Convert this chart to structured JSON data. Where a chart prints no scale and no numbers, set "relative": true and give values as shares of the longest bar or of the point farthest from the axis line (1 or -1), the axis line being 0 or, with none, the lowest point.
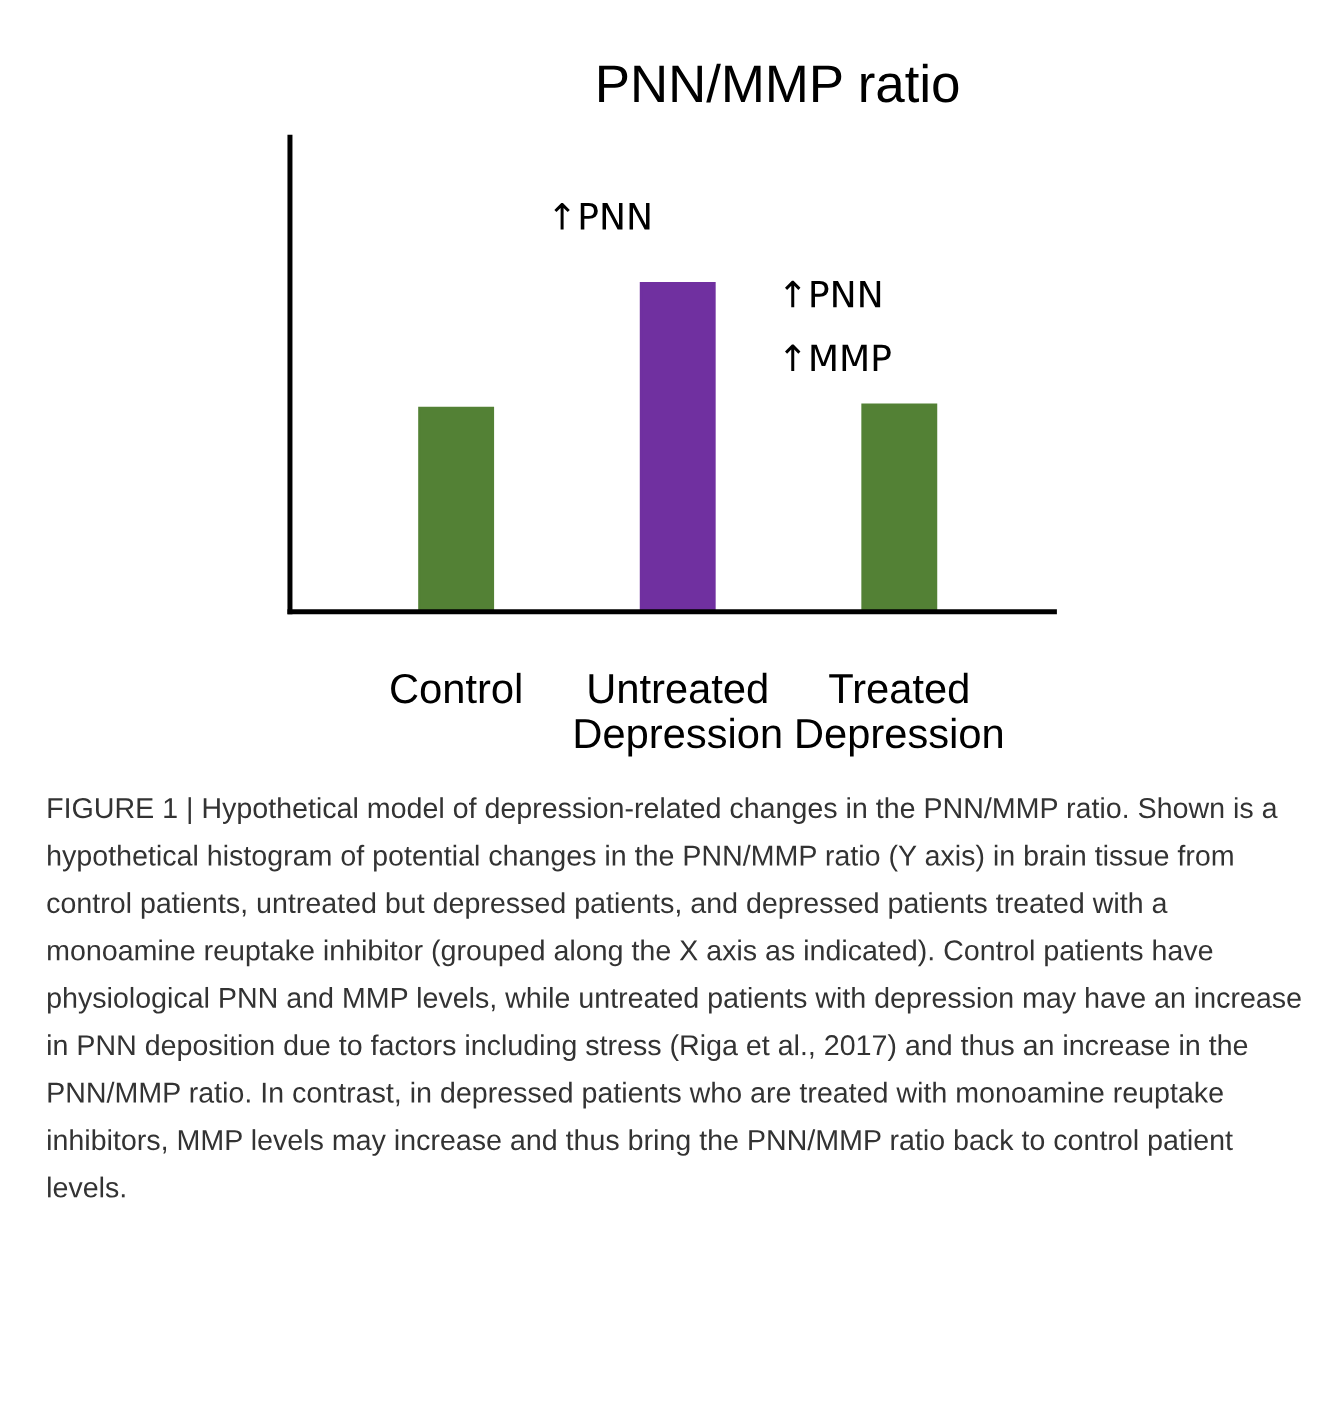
{
  "chart_data": {
    "type": "bar",
    "relative": true,
    "title": "PNN/MMP ratio",
    "categories": [
      "Control",
      "Untreated\nDepression",
      "Treated\nDepression"
    ],
    "values": [
      0.62,
      1,
      0.63
    ],
    "colors": [
      "#538135",
      "#7030a0",
      "#538135"
    ],
    "grid": false,
    "legend": false,
    "annotations": [
      "↑PNN",
      "↑PNN",
      "↑MMP",
      "FIGURE 1 | Hypothetical model of depression-related changes in the PNN/MMP ratio. Shown is a hypothetical histogram of potential changes in the PNN/MMP ratio (Y axis) in brain tissue from control patients, untreated but depressed patients, and depressed patients treated with a monoamine reuptake inhibitor (grouped along the X axis as indicated). Control patients have physiological PNN and MMP levels, while untreated patients with depression may have an increase in PNN deposition due to factors including stress (Riga et al., 2017) and thus an increase in the PNN/MMP ratio. In contrast, in depressed patients who are treated with monoamine reuptake inhibitors, MMP levels may increase and thus bring the PNN/MMP ratio back to control patient levels."
    ]
  }
}
